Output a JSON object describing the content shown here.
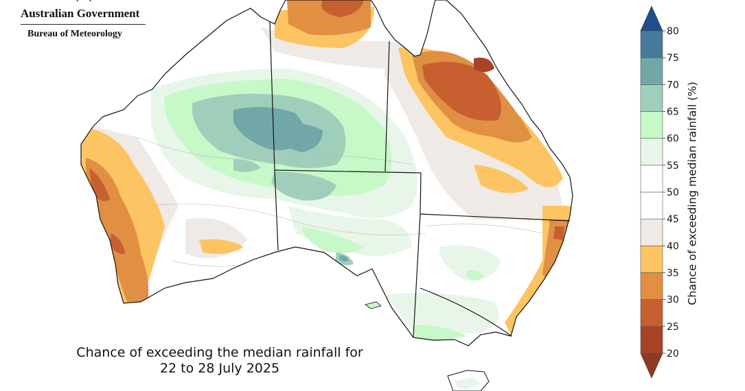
{
  "header": {
    "agency_line1": "Australian Government",
    "agency_line2": "Bureau of Meteorology"
  },
  "caption": {
    "line1": "Chance of exceeding the median rainfall for",
    "line2": "22 to 28 July 2025"
  },
  "legend": {
    "title": "Chance of exceeding median rainfall (%)",
    "ticks": [
      "20",
      "25",
      "30",
      "35",
      "40",
      "45",
      "50",
      "55",
      "60",
      "65",
      "70",
      "75",
      "80"
    ],
    "bins": [
      {
        "range": "20-25",
        "color": "#a94327"
      },
      {
        "range": "25-30",
        "color": "#c85f30"
      },
      {
        "range": "30-35",
        "color": "#e08f43"
      },
      {
        "range": "35-40",
        "color": "#fcc462"
      },
      {
        "range": "40-45",
        "color": "#efeae6"
      },
      {
        "range": "45-50",
        "color": "#ffffff"
      },
      {
        "range": "50-55",
        "color": "#ffffff"
      },
      {
        "range": "55-60",
        "color": "#e8f6ea"
      },
      {
        "range": "60-65",
        "color": "#c7f8c7"
      },
      {
        "range": "65-70",
        "color": "#9fcfba"
      },
      {
        "range": "70-75",
        "color": "#72a7a8"
      },
      {
        "range": "75-80",
        "color": "#467a9a"
      }
    ],
    "low_arrow_color": "#8f3a20",
    "high_arrow_color": "#1f4f8a"
  }
}
